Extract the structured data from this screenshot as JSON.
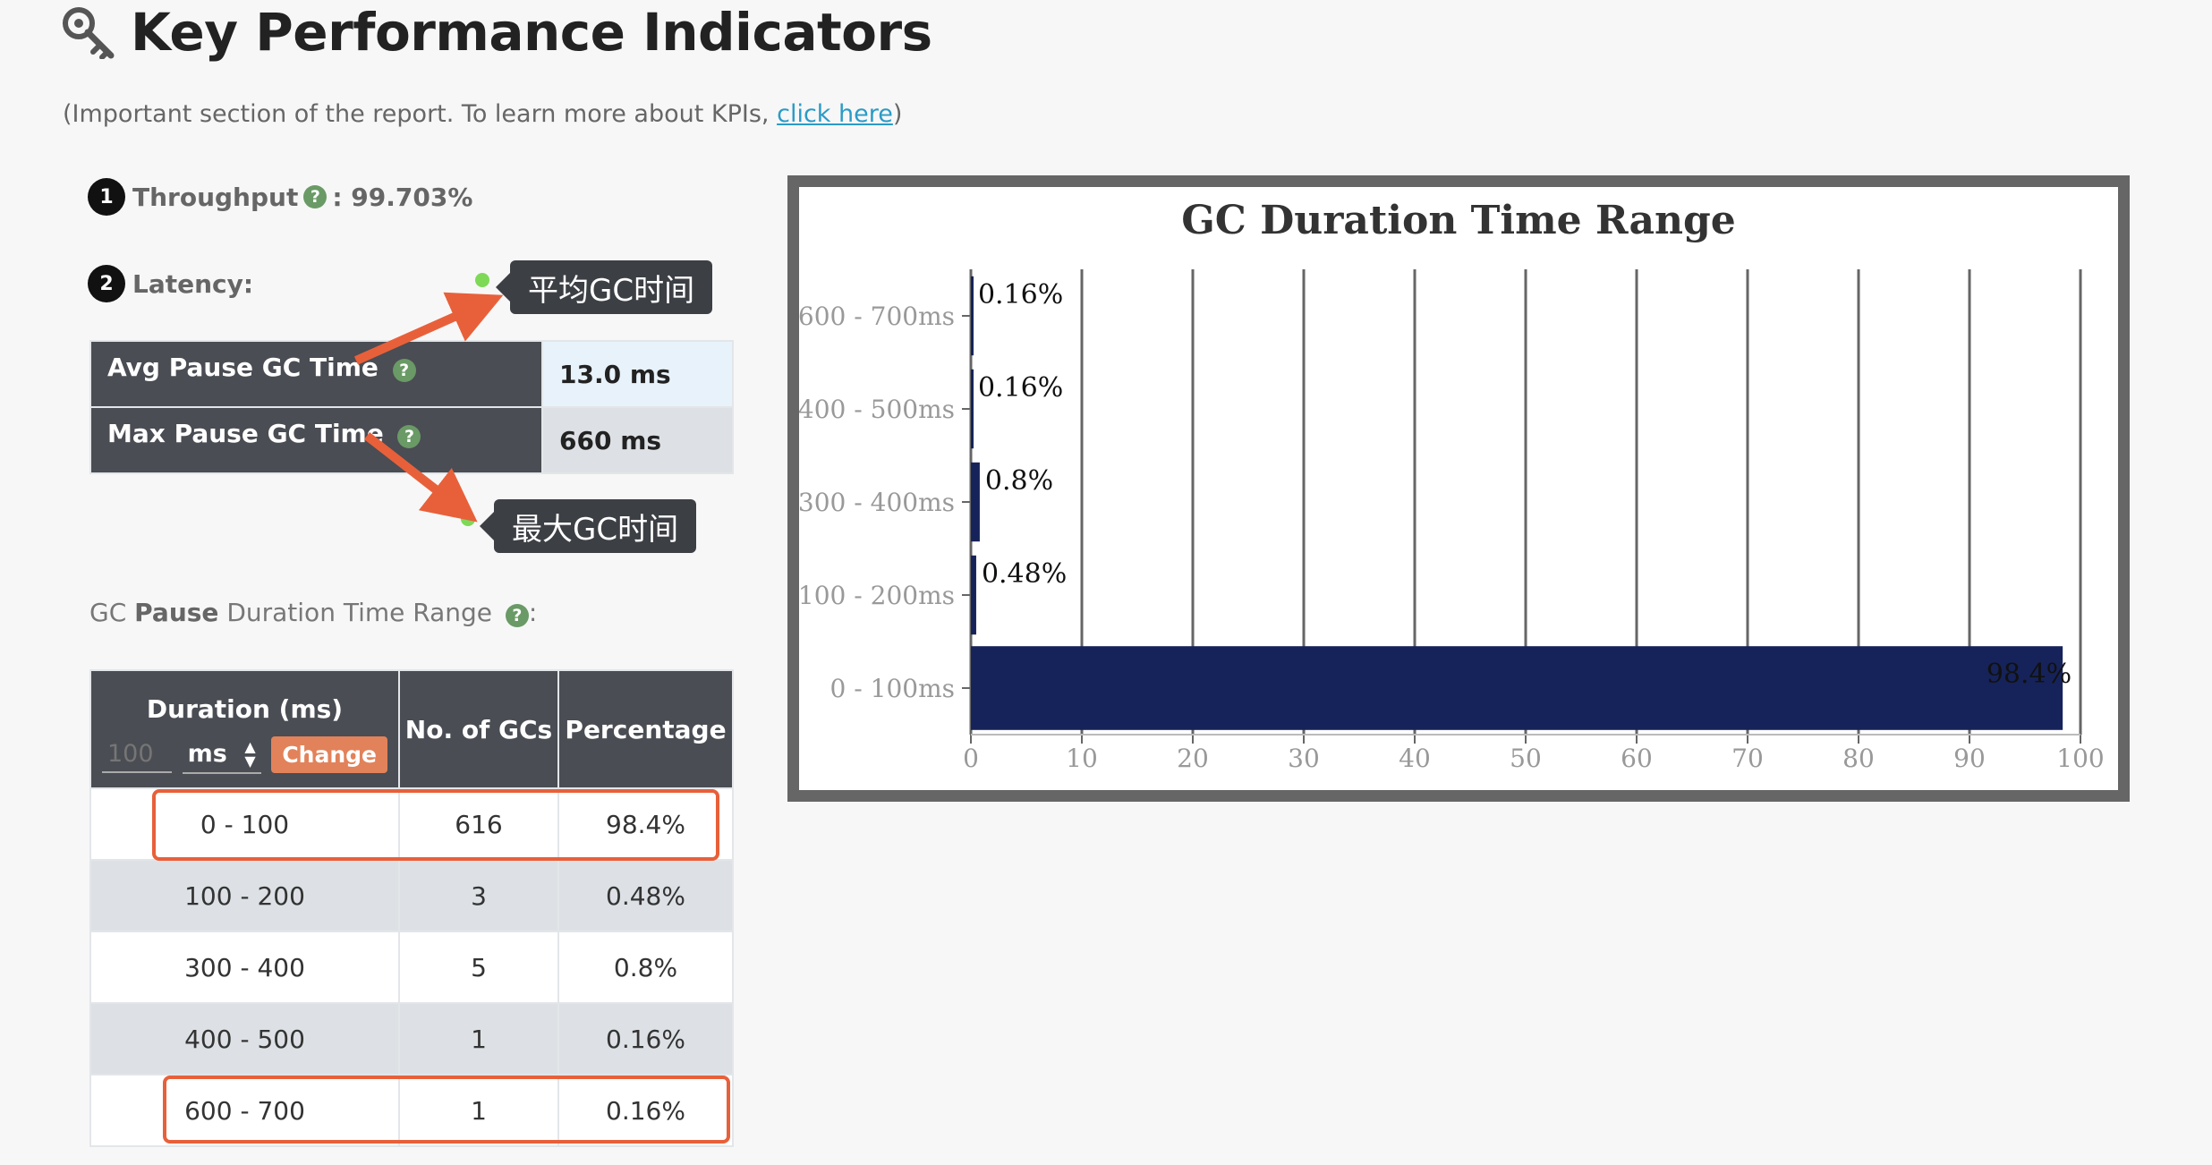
{
  "header": {
    "title": "Key Performance Indicators",
    "subtitle_prefix": "(Important section of the report. To learn more about KPIs, ",
    "subtitle_link": "click here",
    "subtitle_suffix": ")"
  },
  "throughput": {
    "badge": "1",
    "label": "Throughput",
    "value": ": 99.703%"
  },
  "latency": {
    "badge": "2",
    "label": "Latency:",
    "rows": [
      {
        "label": "Avg Pause GC Time",
        "value": "13.0 ms"
      },
      {
        "label": "Max Pause GC Time",
        "value": "660 ms"
      }
    ]
  },
  "annotations": {
    "avg_callout": "平均GC时间",
    "max_callout": "最大GC时间",
    "arrow_color": "#e8603a"
  },
  "range_section": {
    "prefix": "GC ",
    "bold": "Pause",
    "suffix": " Duration Time Range",
    "colon": ":"
  },
  "gc_table": {
    "headers": {
      "duration": "Duration (ms)",
      "count": "No. of GCs",
      "percentage": "Percentage"
    },
    "unit_input_placeholder": "100",
    "unit_select": "ms",
    "change_button": "Change",
    "rows": [
      {
        "duration": "0 - 100",
        "count": "616",
        "percentage": "98.4%"
      },
      {
        "duration": "100 - 200",
        "count": "3",
        "percentage": "0.48%"
      },
      {
        "duration": "300 - 400",
        "count": "5",
        "percentage": "0.8%"
      },
      {
        "duration": "400 - 500",
        "count": "1",
        "percentage": "0.16%"
      },
      {
        "duration": "600 - 700",
        "count": "1",
        "percentage": "0.16%"
      }
    ]
  },
  "chart_data": {
    "type": "bar",
    "orientation": "horizontal",
    "title": "GC Duration Time Range",
    "categories": [
      "600 - 700ms",
      "400 - 500ms",
      "300 - 400ms",
      "100 - 200ms",
      "0 - 100ms"
    ],
    "values": [
      0.16,
      0.16,
      0.8,
      0.48,
      98.4
    ],
    "data_labels": [
      "0.16%",
      "0.16%",
      "0.8%",
      "0.48%",
      "98.4%"
    ],
    "xlim": [
      0,
      100
    ],
    "xticks": [
      "0",
      "10",
      "20",
      "30",
      "40",
      "50",
      "60",
      "70",
      "80",
      "90",
      "100"
    ],
    "grid": true,
    "bar_color": "#16235a"
  },
  "colors": {
    "header_bg": "#4a4d53",
    "accent_link": "#2a9bc7",
    "button": "#e2825a",
    "highlight": "#e8603a"
  }
}
